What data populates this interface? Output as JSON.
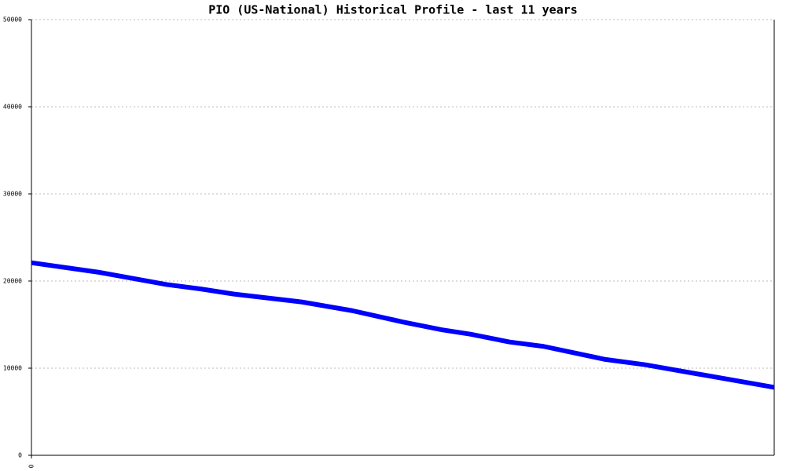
{
  "chart_data": {
    "type": "line",
    "title": "PIO (US-National) Historical Profile - last 11 years",
    "x": [
      0,
      12,
      24,
      30,
      36,
      48,
      57,
      66,
      73,
      78,
      85,
      91,
      102,
      109,
      132
    ],
    "series": [
      {
        "color": "#0000ff",
        "values": [
          22100,
          21000,
          19600,
          19100,
          18500,
          17600,
          16600,
          15300,
          14400,
          13900,
          13000,
          12500,
          11000,
          10400,
          7800
        ]
      }
    ],
    "xlim": [
      0,
      132
    ],
    "xticks": [
      0
    ],
    "ylim": [
      0,
      50000
    ],
    "yticks": [
      0,
      10000,
      20000,
      30000,
      40000,
      50000
    ],
    "grid": true
  }
}
